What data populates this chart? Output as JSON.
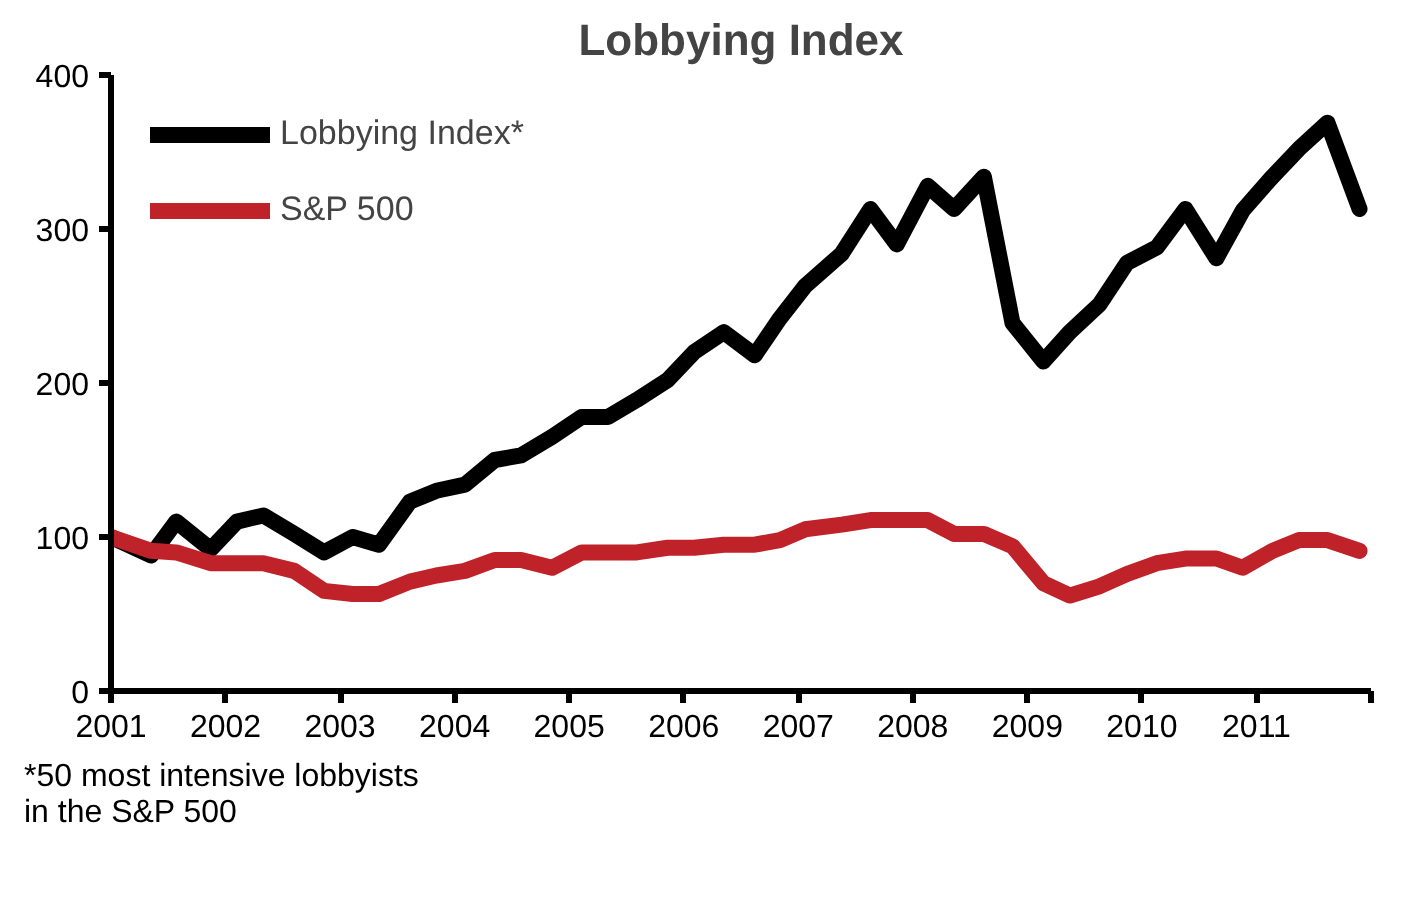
{
  "chart_data": {
    "type": "line",
    "title": "Lobbying Index",
    "x": [
      2001.0,
      2001.35,
      2001.57,
      2001.87,
      2002.1,
      2002.33,
      2002.6,
      2002.86,
      2003.11,
      2003.34,
      2003.61,
      2003.84,
      2004.09,
      2004.35,
      2004.58,
      2004.85,
      2005.11,
      2005.34,
      2005.59,
      2005.86,
      2006.09,
      2006.35,
      2006.62,
      2006.84,
      2007.06,
      2007.38,
      2007.63,
      2007.86,
      2008.13,
      2008.36,
      2008.62,
      2008.87,
      2009.14,
      2009.37,
      2009.63,
      2009.87,
      2010.13,
      2010.38,
      2010.65,
      2010.88,
      2011.14,
      2011.37,
      2011.62,
      2011.9
    ],
    "series": [
      {
        "name": "Lobbying Index*",
        "color": "#000000",
        "values": [
          100,
          88,
          110,
          92,
          110,
          114,
          102,
          90,
          100,
          95,
          123,
          130,
          134,
          150,
          153,
          165,
          178,
          178,
          189,
          202,
          220,
          233,
          218,
          242,
          263,
          284,
          313,
          290,
          328,
          313,
          334,
          239,
          214,
          233,
          251,
          278,
          288,
          313,
          281,
          312,
          334,
          352,
          369,
          313
        ]
      },
      {
        "name": "S&P 500",
        "color": "#c0222a",
        "values": [
          100,
          91,
          90,
          83,
          83,
          83,
          78,
          65,
          63,
          63,
          71,
          75,
          78,
          85,
          85,
          80,
          90,
          90,
          90,
          93,
          93,
          95,
          95,
          98,
          105,
          108,
          111,
          111,
          111,
          102,
          102,
          94,
          70,
          62,
          68,
          76,
          83,
          86,
          86,
          80,
          91,
          98,
          98,
          91
        ]
      }
    ],
    "xlim": [
      2001,
      2012
    ],
    "xticks": [
      2001,
      2002,
      2003,
      2004,
      2005,
      2006,
      2007,
      2008,
      2009,
      2010,
      2011,
      {
        "value": 2012,
        "label": null
      }
    ],
    "ylim": [
      0,
      400
    ],
    "yticks": [
      0,
      100,
      200,
      300,
      400
    ],
    "grid": false,
    "legend": "top left",
    "marker": "none",
    "line_style": "solid",
    "annotations": [
      "*50 most intensive lobbyists\nin the S&P 500"
    ]
  }
}
